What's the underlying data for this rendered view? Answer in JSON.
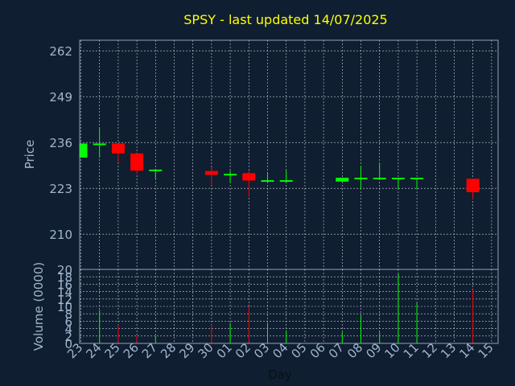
{
  "chart_data": {
    "type": "candlestick",
    "title": "SPSY - last updated 14/07/2025",
    "xlabel": "Day",
    "price_panel": {
      "ylabel": "Price",
      "ylim": [
        200,
        265
      ],
      "yticks": [
        210,
        223,
        236,
        249,
        262
      ],
      "grid": true
    },
    "volume_panel": {
      "ylabel": "Volume (0000)",
      "ylim": [
        0,
        20
      ],
      "yticks": [
        0,
        2,
        4,
        6,
        8,
        10,
        12,
        14,
        16,
        18,
        20
      ],
      "grid": true
    },
    "x_ticks": [
      "23",
      "24",
      "25",
      "26",
      "27",
      "28",
      "29",
      "30",
      "01",
      "02",
      "03",
      "04",
      "05",
      "06",
      "07",
      "08",
      "09",
      "10",
      "11",
      "12",
      "13",
      "14",
      "15"
    ],
    "candles": [
      {
        "day": "23",
        "open": 231.7,
        "close": 235.7,
        "high": 235.7,
        "low": 231.7,
        "volume": 0
      },
      {
        "day": "24",
        "open": 235.4,
        "close": 235.7,
        "high": 240.0,
        "low": 231.7,
        "volume": 9
      },
      {
        "day": "25",
        "open": 235.7,
        "close": 232.9,
        "high": 235.7,
        "low": 230.3,
        "volume": 5
      },
      {
        "day": "26",
        "open": 232.9,
        "close": 228.0,
        "high": 232.9,
        "low": 227.1,
        "volume": 2
      },
      {
        "day": "27",
        "open": 228.1,
        "close": 228.3,
        "high": 228.3,
        "low": 225.6,
        "volume": 2
      },
      {
        "day": "30",
        "open": 227.9,
        "close": 226.8,
        "high": 229.0,
        "low": 223.8,
        "volume": 5
      },
      {
        "day": "01",
        "open": 226.9,
        "close": 227.1,
        "high": 228.0,
        "low": 224.6,
        "volume": 5.5
      },
      {
        "day": "02",
        "open": 227.3,
        "close": 225.2,
        "high": 228.0,
        "low": 220.6,
        "volume": 10
      },
      {
        "day": "03",
        "open": 225.1,
        "close": 225.3,
        "high": 227.6,
        "low": 224.6,
        "volume": 5.5
      },
      {
        "day": "04",
        "open": 225.1,
        "close": 225.3,
        "high": 228.1,
        "low": 224.6,
        "volume": 3.5
      },
      {
        "day": "07",
        "open": 224.9,
        "close": 226.0,
        "high": 226.0,
        "low": 224.9,
        "volume": 3
      },
      {
        "day": "08",
        "open": 225.8,
        "close": 226.0,
        "high": 229.4,
        "low": 222.8,
        "volume": 7.5
      },
      {
        "day": "09",
        "open": 225.8,
        "close": 226.0,
        "high": 230.2,
        "low": 225.6,
        "volume": 3
      },
      {
        "day": "10",
        "open": 225.8,
        "close": 226.0,
        "high": 226.0,
        "low": 222.6,
        "volume": 19
      },
      {
        "day": "11",
        "open": 225.8,
        "close": 226.0,
        "high": 226.0,
        "low": 222.6,
        "volume": 11
      },
      {
        "day": "14",
        "open": 225.7,
        "close": 221.9,
        "high": 225.7,
        "low": 219.8,
        "volume": 14.5
      }
    ],
    "colors": {
      "background": "#0f1e30",
      "up": "#00ff00",
      "down": "#ff0000",
      "title": "#ffff00",
      "axis_text": "#a0b6cf",
      "frame": "#8fa3bf",
      "grid": "#c8d2dc"
    }
  }
}
